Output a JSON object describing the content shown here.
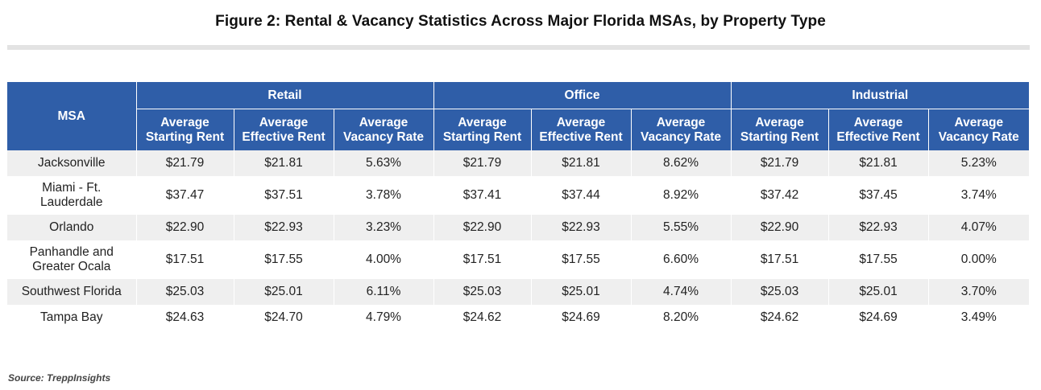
{
  "chart_data": {
    "type": "table",
    "title": "Figure 2: Rental & Vacancy Statistics Across Major Florida MSAs, by Property Type",
    "row_header": "MSA",
    "groups": [
      "Retail",
      "Office",
      "Industrial"
    ],
    "sub_headers": [
      [
        "Average",
        "Starting Rent"
      ],
      [
        "Average",
        "Effective Rent"
      ],
      [
        "Average",
        "Vacancy Rate"
      ]
    ],
    "rows": [
      {
        "msa": [
          "Jacksonville"
        ],
        "values": [
          "$21.79",
          "$21.81",
          "5.63%",
          "$21.79",
          "$21.81",
          "8.62%",
          "$21.79",
          "$21.81",
          "5.23%"
        ]
      },
      {
        "msa": [
          "Miami - Ft.",
          "Lauderdale"
        ],
        "values": [
          "$37.47",
          "$37.51",
          "3.78%",
          "$37.41",
          "$37.44",
          "8.92%",
          "$37.42",
          "$37.45",
          "3.74%"
        ]
      },
      {
        "msa": [
          "Orlando"
        ],
        "values": [
          "$22.90",
          "$22.93",
          "3.23%",
          "$22.90",
          "$22.93",
          "5.55%",
          "$22.90",
          "$22.93",
          "4.07%"
        ]
      },
      {
        "msa": [
          "Panhandle and",
          "Greater Ocala"
        ],
        "values": [
          "$17.51",
          "$17.55",
          "4.00%",
          "$17.51",
          "$17.55",
          "6.60%",
          "$17.51",
          "$17.55",
          "0.00%"
        ]
      },
      {
        "msa": [
          "Southwest Florida"
        ],
        "values": [
          "$25.03",
          "$25.01",
          "6.11%",
          "$25.03",
          "$25.01",
          "4.74%",
          "$25.03",
          "$25.01",
          "3.70%"
        ]
      },
      {
        "msa": [
          "Tampa Bay"
        ],
        "values": [
          "$24.63",
          "$24.70",
          "4.79%",
          "$24.62",
          "$24.69",
          "8.20%",
          "$24.62",
          "$24.69",
          "3.49%"
        ]
      }
    ],
    "source": "Source: TreppInsights"
  },
  "colors": {
    "header_bg": "#2f5ea8",
    "header_text": "#ffffff",
    "stripe_bg": "#efefef",
    "rule": "#e3e3e3"
  }
}
